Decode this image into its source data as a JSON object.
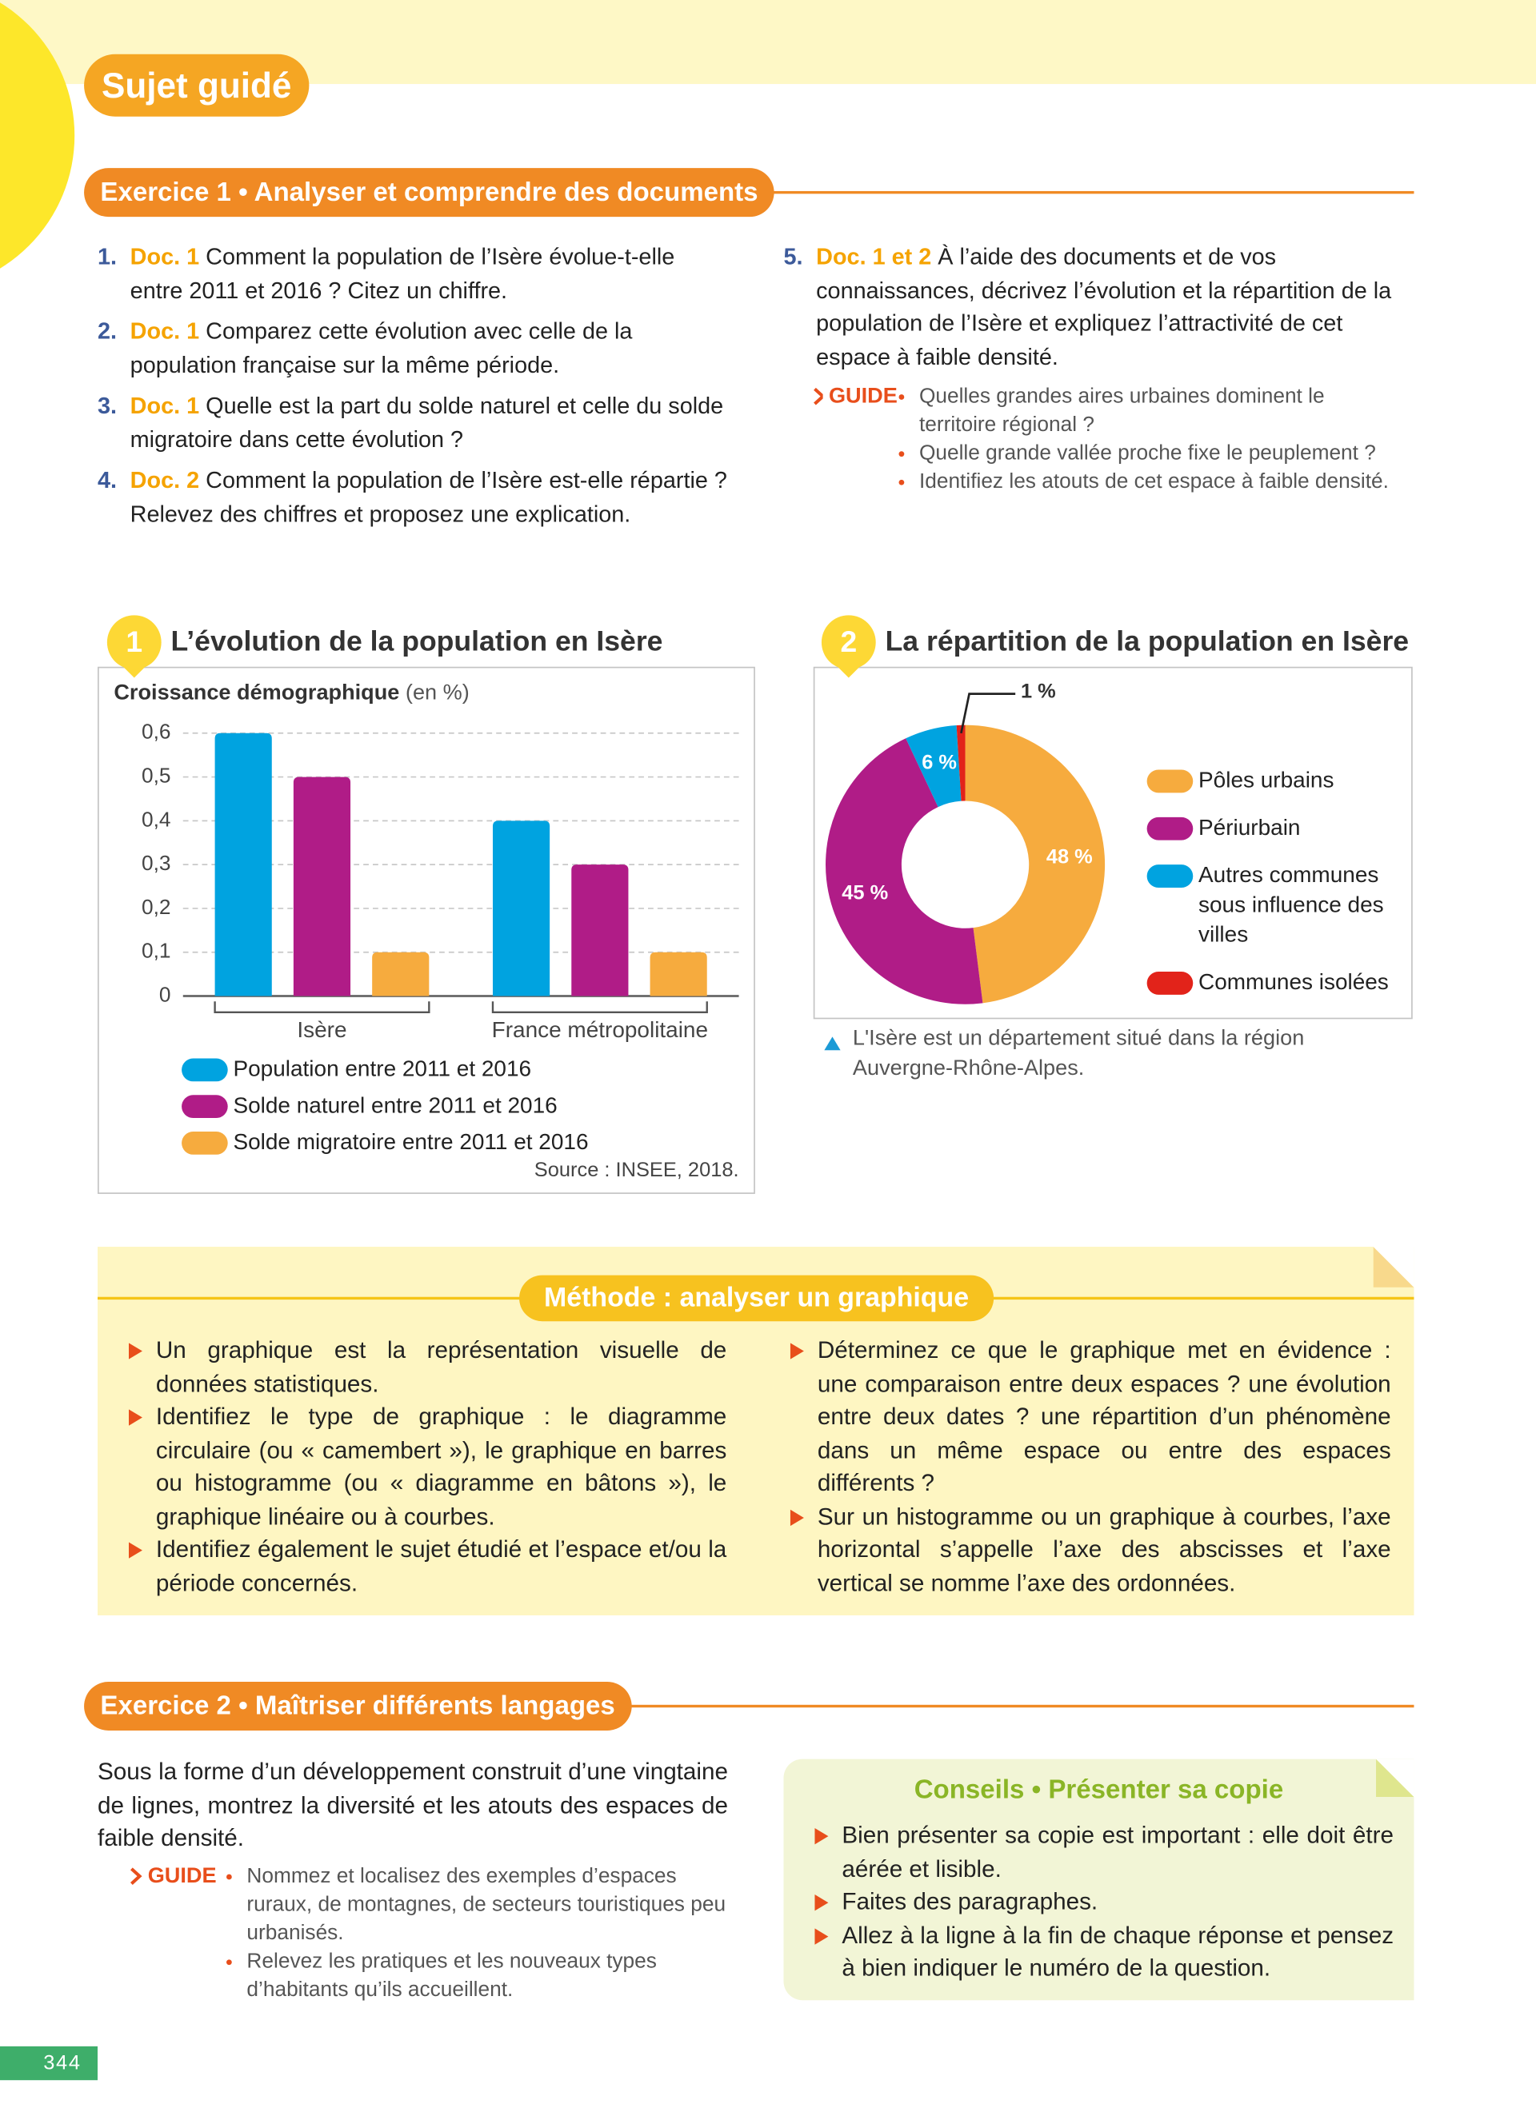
{
  "header": {
    "title": "Sujet guidé"
  },
  "exercise1": {
    "title": "Exercice 1 • Analyser et comprendre des documents",
    "questions": [
      {
        "number": "1.",
        "ref": "Doc. 1",
        "text": "Comment la population de l’Isère évolue-t-elle entre 2011 et 2016 ? Citez un chiffre."
      },
      {
        "number": "2.",
        "ref": "Doc. 1",
        "text": "Comparez cette évolution avec celle de la population française sur la même période."
      },
      {
        "number": "3.",
        "ref": "Doc. 1",
        "text": "Quelle est la part du solde naturel et celle du solde migratoire dans cette évolution ?"
      },
      {
        "number": "4.",
        "ref": "Doc. 2",
        "text": "Comment la population de l’Isère est-elle répartie ? Relevez des chiffres et proposez une explication."
      }
    ],
    "question5": {
      "number": "5.",
      "ref": "Doc. 1 et 2",
      "text": "À l’aide des documents et de vos connaissances, décrivez l’évolution et la répartition de la population de l’Isère et expliquez l’attractivité de cet espace à faible densité.",
      "guide_label": "GUIDE",
      "guide": [
        "Quelles grandes aires urbaines dominent le territoire régional ?",
        "Quelle grande vallée proche fixe le peuplement ?",
        "Identifiez les atouts de cet espace à faible densité."
      ]
    }
  },
  "doc1": {
    "number": "1",
    "title": "L’évolution de la population en Isère",
    "chart_data": {
      "type": "bar",
      "axis_title": "Croissance démographique",
      "axis_unit": "(en %)",
      "categories": [
        "Isère",
        "France métropolitaine"
      ],
      "series": [
        {
          "name": "Population entre 2011 et 2016",
          "color": "#00a3e0",
          "values": [
            0.6,
            0.4
          ]
        },
        {
          "name": "Solde naturel entre 2011 et 2016",
          "color": "#b01c87",
          "values": [
            0.5,
            0.3
          ]
        },
        {
          "name": "Solde migratoire entre 2011 et 2016",
          "color": "#f6ab3e",
          "values": [
            0.1,
            0.1
          ]
        }
      ],
      "ylim": [
        0,
        0.6
      ],
      "yticks": [
        0,
        {
          "value": 0.1,
          "label": "0,1"
        },
        {
          "value": 0.2,
          "label": "0,2"
        },
        {
          "value": 0.3,
          "label": "0,3"
        },
        {
          "value": 0.4,
          "label": "0,4"
        },
        {
          "value": 0.5,
          "label": "0,5"
        },
        {
          "value": 0.6,
          "label": "0,6"
        }
      ],
      "grid": true,
      "source": "Source : INSEE, 2018."
    }
  },
  "doc2": {
    "number": "2",
    "title": "La répartition de la population en Isère",
    "chart_data": {
      "type": "donut",
      "categories": [
        "Pôles urbains",
        "Périurbain",
        "Autres communes sous influence des villes",
        "Communes isolées"
      ],
      "values": [
        48,
        45,
        6,
        1
      ],
      "value_labels": [
        "48 %",
        "45 %",
        "6 %",
        "1 %"
      ],
      "colors": [
        "#f6ab3e",
        "#b01c87",
        "#00a3e0",
        "#e2231a"
      ]
    },
    "caption": "L'Isère est un département situé dans la région Auvergne-Rhône-Alpes."
  },
  "method": {
    "title": "Méthode : analyser un graphique",
    "left": [
      "Un graphique est la représentation visuelle de données statistiques.",
      "Identifiez le type de graphique : le diagramme circulaire (ou « camembert »), le graphique en barres ou histogramme (ou « diagramme en bâtons »), le graphique linéaire ou à courbes.",
      "Identifiez également le sujet étudié et l’espace et/ou la période concernés."
    ],
    "right": [
      "Déterminez ce que le graphique met en évidence : une comparaison entre deux espaces ? une évolution entre deux dates ? une répartition d’un phénomène dans un même espace ou entre des espaces différents ?",
      "Sur un histogramme ou un graphique à courbes, l’axe horizontal s’appelle l’axe des abscisses et l’axe vertical se nomme l’axe des ordonnées."
    ]
  },
  "exercise2": {
    "title": "Exercice 2 • Maîtriser différents langages",
    "text": "Sous la forme d’un développement construit d’une vingtaine de lignes, montrez la diversité et les atouts des espaces de faible densité.",
    "guide_label": "GUIDE",
    "guide": [
      "Nommez et localisez des exemples d’espaces ruraux, de montagnes, de secteurs touristiques peu urbanisés.",
      "Relevez les pratiques et les nouveaux types d’habitants qu’ils accueillent."
    ]
  },
  "advice": {
    "title": "Conseils • Présenter sa copie",
    "items": [
      "Bien présenter sa copie est important : elle doit être aérée et lisible.",
      "Faites des paragraphes.",
      "Allez à la ligne à la fin de chaque réponse et pensez à bien indiquer le numéro de la question."
    ]
  },
  "footer": {
    "page": 344
  }
}
